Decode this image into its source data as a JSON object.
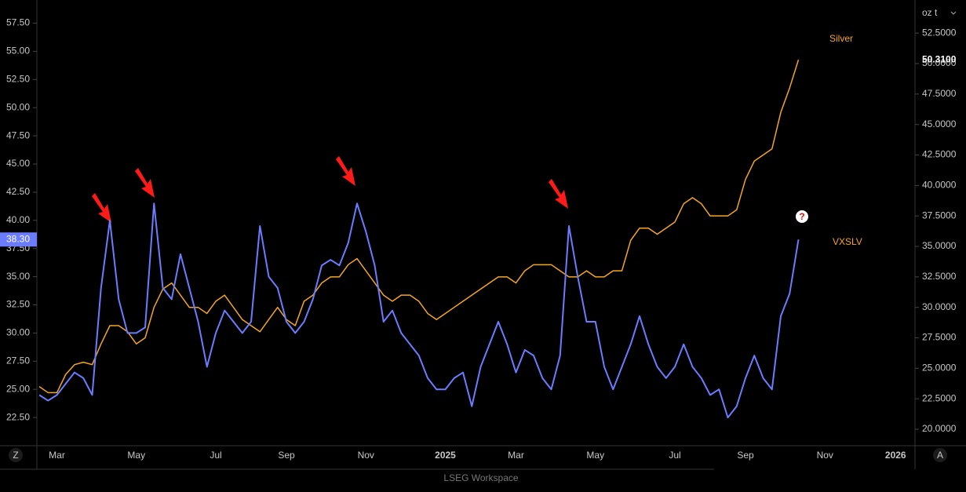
{
  "chart_data": {
    "type": "line",
    "categories": [
      null,
      null,
      "Mar",
      null,
      null,
      null,
      null,
      null,
      null,
      null,
      null,
      "May",
      null,
      null,
      null,
      null,
      null,
      null,
      null,
      null,
      "Jul",
      null,
      null,
      null,
      null,
      null,
      null,
      null,
      "Sep",
      null,
      null,
      null,
      null,
      null,
      null,
      null,
      null,
      "Nov",
      null,
      null,
      null,
      null,
      null,
      null,
      null,
      null,
      "2025",
      null,
      null,
      null,
      null,
      null,
      null,
      null,
      "Mar",
      null,
      null,
      null,
      null,
      null,
      null,
      null,
      null,
      "May",
      null,
      null,
      null,
      null,
      null,
      null,
      null,
      null,
      "Jul",
      null,
      null,
      null,
      null,
      null,
      null,
      null,
      "Sep",
      null,
      null,
      null,
      null,
      null,
      null,
      null,
      null,
      "Nov",
      null,
      null,
      null,
      null,
      null,
      null,
      null,
      "2026",
      null,
      null
    ],
    "series": [
      {
        "name": "VXSLV",
        "color": "#6b7cff",
        "last_label": "38.30",
        "values": [
          24.5,
          24,
          24.5,
          25.5,
          26.5,
          26,
          24.5,
          34,
          40,
          33,
          30,
          30,
          30.5,
          41.5,
          34,
          33,
          37,
          34,
          31,
          27,
          30,
          32,
          31,
          30,
          31,
          39.5,
          35,
          34,
          31,
          30,
          31,
          33,
          36,
          36.5,
          36,
          38,
          41.5,
          39,
          36,
          31,
          32,
          30,
          29,
          28,
          26,
          25,
          25,
          26,
          26.5,
          23.5,
          27,
          29,
          31,
          29,
          26.5,
          28.5,
          28,
          26,
          25,
          28,
          39.5,
          35,
          31,
          31,
          27,
          25,
          27,
          29,
          31.5,
          29,
          27,
          26,
          27,
          29,
          27,
          26,
          24.5,
          25,
          22.5,
          23.5,
          26,
          28,
          26,
          25,
          31.5,
          33.5,
          38.3,
          null,
          null,
          null,
          null,
          null,
          null,
          null,
          null,
          null,
          null,
          null,
          null,
          null
        ]
      },
      {
        "name": "Silver",
        "color": "#f5a623",
        "axis": "y2",
        "last_label": "50.3100",
        "values": [
          23.5,
          23,
          23,
          24.5,
          25.3,
          25.5,
          25.3,
          27,
          28.5,
          28.5,
          28,
          27,
          27.5,
          30,
          31.5,
          32,
          31,
          30,
          30,
          29.5,
          30.5,
          31,
          30,
          29,
          28.5,
          28,
          29,
          30,
          29,
          28.5,
          30.5,
          31,
          32,
          32.5,
          32.5,
          33.5,
          34,
          33,
          32,
          31,
          30.5,
          31,
          31,
          30.5,
          29.5,
          29,
          29.5,
          30,
          30.5,
          31,
          31.5,
          32,
          32.5,
          32.5,
          32,
          33,
          33.5,
          33.5,
          33.5,
          33,
          32.5,
          32.5,
          33,
          32.5,
          32.5,
          33,
          33,
          35.5,
          36.5,
          36.5,
          36,
          36.5,
          37,
          38.5,
          39,
          38.5,
          37.5,
          37.5,
          37.5,
          38,
          40.5,
          42,
          42.5,
          43,
          46,
          48,
          50.31,
          null,
          null,
          null,
          null,
          null,
          null,
          null,
          null,
          null,
          null,
          null,
          null,
          null
        ]
      }
    ],
    "ylim": [
      20,
      59
    ],
    "yticks": [
      {
        "value": 22.5,
        "label": "22.50"
      },
      {
        "value": 25,
        "label": "25.00"
      },
      {
        "value": 27.5,
        "label": "27.50"
      },
      {
        "value": 30,
        "label": "30.00"
      },
      {
        "value": 32.5,
        "label": "32.50"
      },
      {
        "value": 35,
        "label": "35.00"
      },
      {
        "value": 37.5,
        "label": "37.50"
      },
      {
        "value": 40,
        "label": "40.00"
      },
      {
        "value": 42.5,
        "label": "42.50"
      },
      {
        "value": 45,
        "label": "45.00"
      },
      {
        "value": 47.5,
        "label": "47.50"
      },
      {
        "value": 50,
        "label": "50.00"
      },
      {
        "value": 52.5,
        "label": "52.50"
      },
      {
        "value": 55,
        "label": "55.00"
      },
      {
        "value": 57.5,
        "label": "57.50"
      }
    ],
    "y2lim": [
      18.65,
      54.7
    ],
    "y2ticks": [
      {
        "value": 20,
        "label": "20.0000"
      },
      {
        "value": 22.5,
        "label": "22.5000"
      },
      {
        "value": 25,
        "label": "25.0000"
      },
      {
        "value": 27.5,
        "label": "27.5000"
      },
      {
        "value": 30,
        "label": "30.0000"
      },
      {
        "value": 32.5,
        "label": "32.5000"
      },
      {
        "value": 35,
        "label": "35.0000"
      },
      {
        "value": 37.5,
        "label": "37.5000"
      },
      {
        "value": 40,
        "label": "40.0000"
      },
      {
        "value": 42.5,
        "label": "42.5000"
      },
      {
        "value": 45,
        "label": "45.0000"
      },
      {
        "value": 47.5,
        "label": "47.5000"
      },
      {
        "value": 50,
        "label": "50.0000"
      },
      {
        "value": 52.5,
        "label": "52.5000"
      }
    ],
    "y2_unit": "oz t",
    "annotations": {
      "silver": "Silver",
      "vxslv": "VXSLV",
      "question": "?"
    },
    "left_button": "Z",
    "right_button": "A",
    "footer": "LSEG Workspace",
    "grid": false
  }
}
